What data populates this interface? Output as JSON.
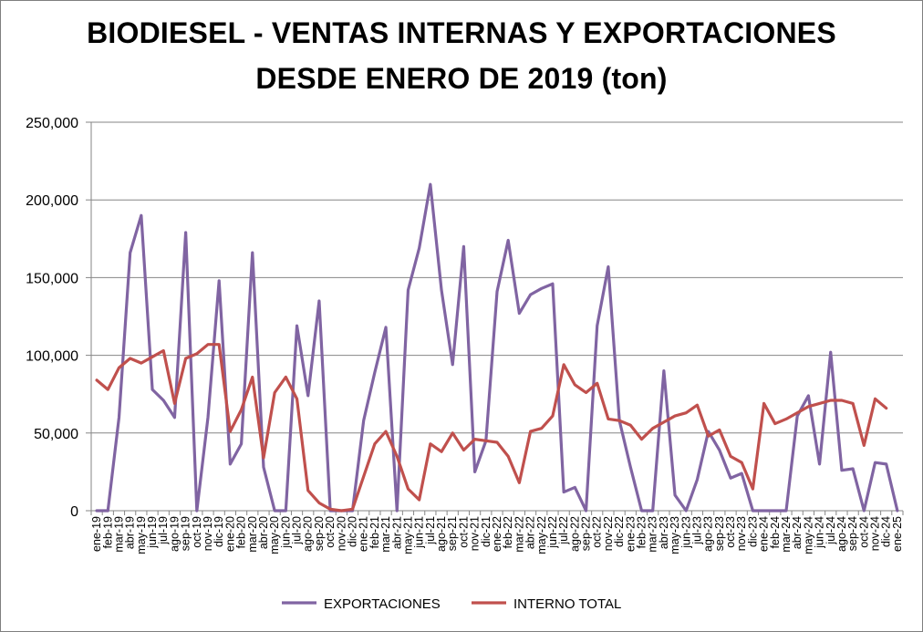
{
  "chart_data": {
    "type": "line",
    "title": "BIODIESEL - VENTAS INTERNAS Y EXPORTACIONES",
    "subtitle": "DESDE ENERO DE 2019 (ton)",
    "xlabel": "",
    "ylabel": "",
    "ylim": [
      0,
      250000
    ],
    "yticks": [
      "0",
      "50,000",
      "100,000",
      "150,000",
      "200,000",
      "250,000"
    ],
    "yticks_values": [
      0,
      50000,
      100000,
      150000,
      200000,
      250000
    ],
    "grid": true,
    "legend_position": "bottom",
    "categories": [
      "ene-19",
      "feb-19",
      "mar-19",
      "abr-19",
      "may-19",
      "jun-19",
      "jul-19",
      "ago-19",
      "sep-19",
      "oct-19",
      "nov-19",
      "dic-19",
      "ene-20",
      "feb-20",
      "mar-20",
      "abr-20",
      "may-20",
      "jun-20",
      "jul-20",
      "ago-20",
      "sep-20",
      "oct-20",
      "nov-20",
      "dic-20",
      "ene-21",
      "feb-21",
      "mar-21",
      "abr-21",
      "may-21",
      "jun-21",
      "jul-21",
      "ago-21",
      "sep-21",
      "oct-21",
      "nov-21",
      "dic-21",
      "ene-22",
      "feb-22",
      "mar-22",
      "abr-22",
      "may-22",
      "jun-22",
      "jul-22",
      "ago-22",
      "sep-22",
      "oct-22",
      "nov-22",
      "dic-22",
      "ene-23",
      "feb-23",
      "mar-23",
      "abr-23",
      "may-23",
      "jun-23",
      "jul-23",
      "ago-23",
      "sep-23",
      "oct-23",
      "nov-23",
      "dic-23",
      "ene-24",
      "feb-24",
      "mar-24",
      "abr-24",
      "may-24",
      "jun-24",
      "jul-24",
      "ago-24",
      "sep-24",
      "oct-24",
      "nov-24",
      "dic-24",
      "ene-25"
    ],
    "series": [
      {
        "name": "EXPORTACIONES",
        "color": "#8064a2",
        "values": [
          0,
          0,
          60000,
          166000,
          190000,
          78000,
          71000,
          60000,
          179000,
          0,
          60000,
          148000,
          30000,
          43000,
          166000,
          28000,
          0,
          0,
          119000,
          74000,
          135000,
          0,
          0,
          0,
          58000,
          89000,
          118000,
          0,
          142000,
          169000,
          210000,
          142000,
          94000,
          170000,
          25000,
          45000,
          141000,
          174000,
          127000,
          139000,
          143000,
          146000,
          12000,
          15000,
          0,
          119000,
          157000,
          58000,
          28000,
          0,
          0,
          90000,
          10000,
          0,
          20000,
          51000,
          39000,
          21000,
          24000,
          0,
          0,
          0,
          0,
          61000,
          74000,
          30000,
          102000,
          26000,
          27000,
          0,
          31000,
          30000,
          0
        ]
      },
      {
        "name": "INTERNO TOTAL",
        "color": "#c0504d",
        "values": [
          84000,
          78000,
          92000,
          98000,
          95000,
          99000,
          103000,
          69000,
          98000,
          101000,
          107000,
          107000,
          51000,
          65000,
          86000,
          34000,
          76000,
          86000,
          72000,
          13000,
          5000,
          1000,
          0,
          1000,
          22000,
          43000,
          51000,
          35000,
          14000,
          7000,
          43000,
          38000,
          50000,
          39000,
          46000,
          45000,
          44000,
          35000,
          18000,
          51000,
          53000,
          61000,
          94000,
          81000,
          76000,
          82000,
          59000,
          58000,
          55000,
          46000,
          53000,
          57000,
          61000,
          63000,
          68000,
          48000,
          52000,
          35000,
          31000,
          14000,
          69000,
          56000,
          59000,
          63000,
          67000,
          69000,
          71000,
          71000,
          69000,
          42000,
          72000,
          66000,
          null
        ]
      }
    ]
  }
}
